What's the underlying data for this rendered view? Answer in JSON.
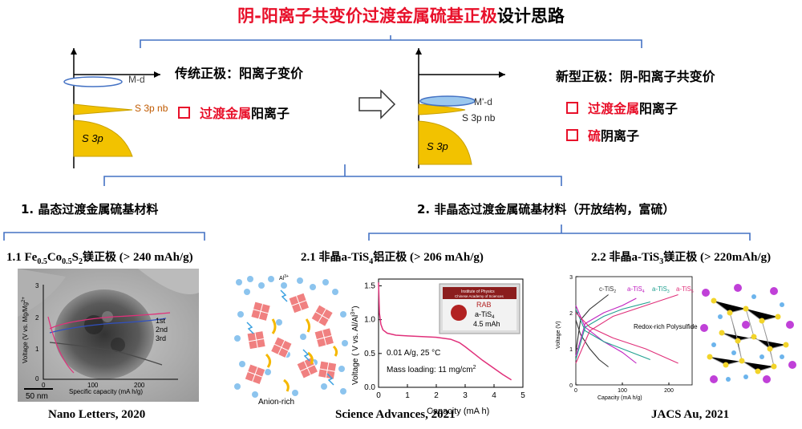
{
  "title": {
    "red": "阴-阳离子共变价过渡金属硫基正极",
    "black": "设计思路"
  },
  "traditional": {
    "heading": "传统正极：阳离子变价",
    "item1_red": "过渡金属",
    "item1_black": "阳离子",
    "band_md": "M-d",
    "band_s3pnb": "S 3p nb",
    "band_s3p": "S 3p"
  },
  "novel": {
    "heading": "新型正极：阴-阳离子共变价",
    "item1_red": "过渡金属",
    "item1_black": "阳离子",
    "item2_red": "硫",
    "item2_black": "阴离子",
    "band_md": "M'-d",
    "band_s3pnb": "S 3p nb",
    "band_s3p": "S 3p"
  },
  "section1": {
    "heading": "1. 晶态过渡金属硫基材料"
  },
  "section2": {
    "heading": "2. 非晶态过渡金属硫基材料（开放结构，富硫）"
  },
  "panel1": {
    "heading_pre": "1.1 Fe",
    "heading_sub1": "0.5",
    "heading_mid": "Co",
    "heading_sub2": "0.5",
    "heading_s": "S",
    "heading_sub3": "2",
    "heading_cn": "镁正极",
    "heading_post": " (> 240 mAh/g)",
    "ylabel": "Voltage (V vs. Mg/Mg",
    "ylabel_sup": "2+",
    "xlabel": "Specific capacity (mA h/g)",
    "legend": [
      "1st",
      "2nd",
      "3rd"
    ],
    "scale": "50  nm",
    "reference": "Nano Letters, 2020"
  },
  "panel2": {
    "heading_pre": "2.1 ",
    "heading_cn1": "非晶",
    "heading_a": "a-TiS",
    "heading_sub": "4",
    "heading_cn2": "铝正极",
    "heading_post": " (> 206 mAh/g)",
    "anion_rich": "Anion-rich",
    "al_label": "Al",
    "al_sup": "3+",
    "ylabel": "Voltage ( V vs. Al/Al",
    "ylabel_sup": "3+",
    "ylabel_end": ")",
    "xlabel": "Capacity (mA h)",
    "condition": "0.01 A/g, 25 °C",
    "loading_pre": "Mass loading: 11 mg/cm",
    "loading_sup": "2",
    "inset_inst1": "Institute of Physics",
    "inset_inst2": "Chinese Academy of Sciences",
    "inset_rab": "RAB",
    "inset_name": "a-TiS",
    "inset_name_sub": "4",
    "inset_cap": "4.5 mAh",
    "reference": "Science Advances, 2021"
  },
  "panel3": {
    "heading_pre": "2.2 ",
    "heading_cn1": "非晶",
    "heading_a": "a-TiS",
    "heading_sub": "3",
    "heading_cn2": "镁正极",
    "heading_post": " (> 220mAh/g)",
    "legend": [
      {
        "name": "c-TiS",
        "sub": "2",
        "color": "#333333"
      },
      {
        "name": "a-TiS",
        "sub": "4",
        "color": "#c020c0"
      },
      {
        "name": "a-TiS",
        "sub": "3",
        "color": "#20a090"
      },
      {
        "name": "a-TiS",
        "sub": "5",
        "color": "#e0307a"
      }
    ],
    "annotation": "Redox-rich Polysulfides",
    "ylabel": "Voltage (V)",
    "xlabel": "Capacity (mA h/g)",
    "reference": "JACS Au, 2021"
  },
  "chart_data": [
    {
      "type": "line",
      "title": "",
      "xlabel": "Capacity (mA h)",
      "ylabel": "Voltage ( V vs. Al/Al3+)",
      "xlim": [
        0,
        5
      ],
      "ylim": [
        0,
        1.6
      ],
      "xticks": [
        0,
        1,
        2,
        3,
        4,
        5
      ],
      "yticks": [
        0.0,
        0.5,
        1.0,
        1.5
      ],
      "series": [
        {
          "x": [
            0.0,
            0.03,
            0.08,
            0.15,
            0.3,
            0.6,
            1.0,
            1.5,
            2.0,
            2.5,
            2.8,
            3.0,
            3.3,
            3.6,
            4.0,
            4.3,
            4.6
          ],
          "y": [
            1.55,
            1.1,
            0.93,
            0.85,
            0.8,
            0.77,
            0.76,
            0.75,
            0.74,
            0.71,
            0.66,
            0.6,
            0.5,
            0.4,
            0.28,
            0.19,
            0.11
          ],
          "color": "#e0307a"
        }
      ]
    },
    {
      "type": "line",
      "title": "",
      "xlabel": "Capacity (mA h/g)",
      "ylabel": "Voltage (V)",
      "xlim": [
        0,
        250
      ],
      "ylim": [
        0,
        3
      ],
      "xticks": [
        0,
        100,
        200
      ],
      "yticks": [
        0,
        1,
        2,
        3
      ],
      "series": [
        {
          "name": "c-TiS2",
          "color": "#333333",
          "charge_x": [
            0,
            10,
            30,
            50,
            70
          ],
          "charge_y": [
            0.9,
            1.8,
            2.1,
            2.3,
            2.5
          ],
          "discharge_x": [
            0,
            10,
            30,
            50,
            70
          ],
          "discharge_y": [
            1.8,
            1.4,
            1.0,
            0.7,
            0.5
          ]
        },
        {
          "name": "a-TiS4",
          "color": "#c020c0",
          "charge_x": [
            0,
            20,
            60,
            100,
            130
          ],
          "charge_y": [
            0.8,
            1.7,
            2.0,
            2.2,
            2.4
          ],
          "discharge_x": [
            0,
            20,
            60,
            100,
            130
          ],
          "discharge_y": [
            2.2,
            1.6,
            1.2,
            0.9,
            0.6
          ]
        },
        {
          "name": "a-TiS3",
          "color": "#20a090",
          "charge_x": [
            0,
            20,
            60,
            100,
            160
          ],
          "charge_y": [
            0.7,
            1.6,
            1.9,
            2.1,
            2.3
          ],
          "discharge_x": [
            0,
            20,
            60,
            100,
            160
          ],
          "discharge_y": [
            2.1,
            1.5,
            1.2,
            1.0,
            0.7
          ]
        },
        {
          "name": "a-TiS5",
          "color": "#e0307a",
          "charge_x": [
            0,
            30,
            80,
            150,
            220
          ],
          "charge_y": [
            0.6,
            1.5,
            1.9,
            2.2,
            2.5
          ],
          "discharge_x": [
            0,
            30,
            80,
            150,
            220
          ],
          "discharge_y": [
            2.0,
            1.6,
            1.3,
            1.0,
            0.6
          ]
        }
      ]
    }
  ]
}
